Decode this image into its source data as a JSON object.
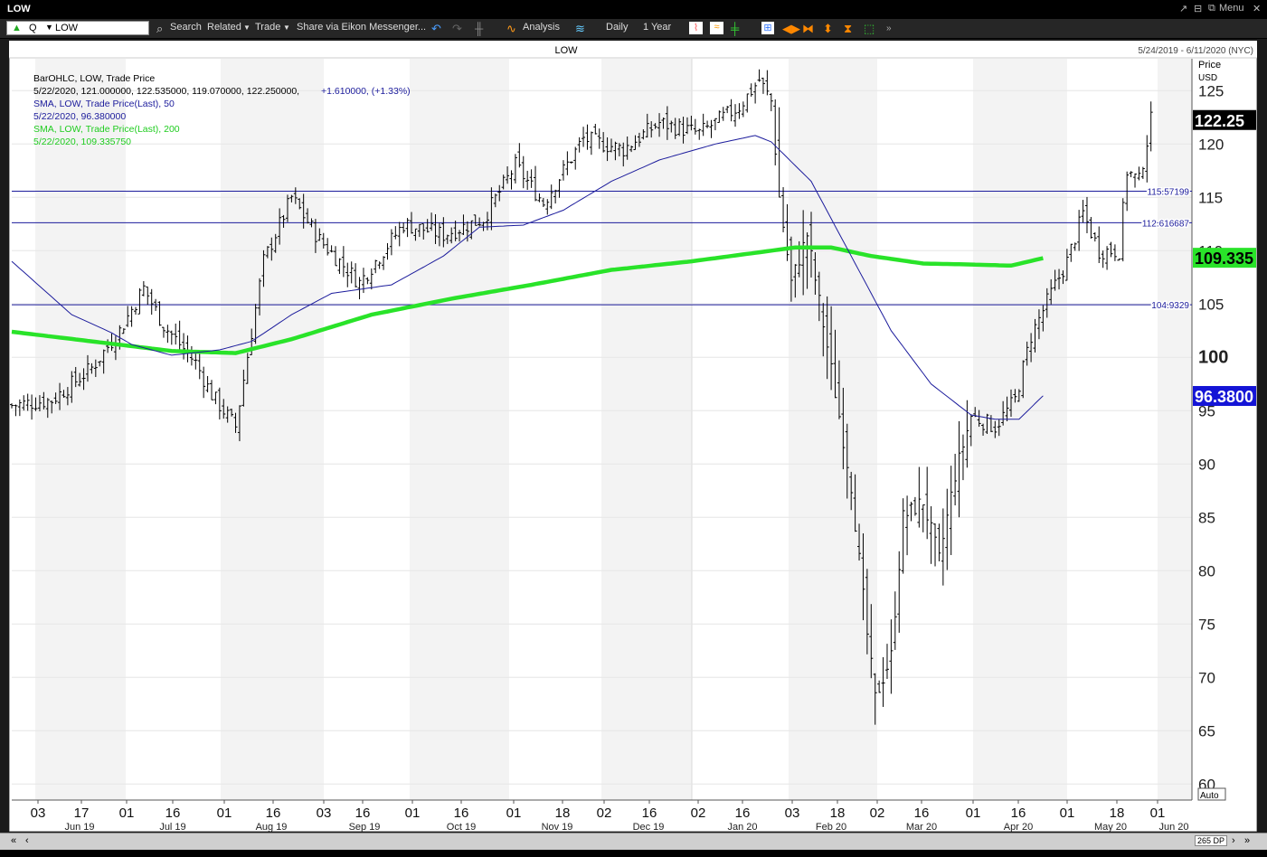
{
  "window": {
    "title": "LOW",
    "menu_label": "Menu",
    "controls": [
      "↗",
      "⊟",
      "⧉",
      "✕"
    ]
  },
  "toolbar": {
    "ric_value": "LOW",
    "ric_prefix": "Q",
    "search": "Search",
    "related": "Related",
    "trade": "Trade",
    "share": "Share via Eikon Messenger...",
    "analysis": "Analysis",
    "interval": "Daily",
    "range": "1 Year"
  },
  "chart_header": {
    "instrument": "LOW",
    "date_range": "5/24/2019 - 6/11/2020 (NYC)",
    "axis_title_1": "Price",
    "axis_title_2": "USD",
    "auto_label": "Auto",
    "dp_label": "265 DP"
  },
  "legend": {
    "line1": "BarOHLC, LOW, Trade Price",
    "line2_values": "5/22/2020, 121.000000, 122.535000, 119.070000, 122.250000,",
    "line2_change": "+1.610000, (+1.33%)",
    "line3": "SMA, LOW, Trade Price(Last),  50",
    "line4": "5/22/2020, 96.380000",
    "line5": "SMA, LOW, Trade Price(Last),  200",
    "line6": "5/22/2020, 109.335750"
  },
  "colors": {
    "sma50": "#1c1c9c",
    "sma200": "#29e329",
    "bars": "#000000",
    "hline": "#1c1c9c",
    "last_box_bg": "#000000",
    "sma200_box": "#29e329",
    "sma50_box": "#1414d6"
  },
  "chart_data": {
    "type": "bar",
    "subtype": "ohlc",
    "title": "LOW",
    "ylabel": "Price USD",
    "ylim": [
      58.5,
      127.5
    ],
    "yticks": [
      60,
      65,
      70,
      75,
      80,
      85,
      90,
      95,
      100,
      105,
      110,
      115,
      120,
      125
    ],
    "ytick_labels": [
      "60",
      "65",
      "70",
      "75",
      "80",
      "85",
      "90",
      "95",
      "100",
      "105",
      "110",
      "115",
      "120",
      "125"
    ],
    "x_day_labels": [
      "03",
      "17",
      "01",
      "16",
      "01",
      "16",
      "03",
      "16",
      "01",
      "16",
      "01",
      "18",
      "02",
      "16",
      "02",
      "16",
      "03",
      "18",
      "02",
      "16",
      "01",
      "16",
      "01",
      "18",
      "01"
    ],
    "x_month_labels": [
      "Jun 19",
      "Jul 19",
      "Aug 19",
      "Sep 19",
      "Oct 19",
      "Nov 19",
      "Dec 19",
      "Jan 20",
      "Feb 20",
      "Mar 20",
      "Apr 20",
      "May 20",
      "Jun 20"
    ],
    "hlines": [
      {
        "value": 115.57199,
        "label": "115.57199"
      },
      {
        "value": 112.616687,
        "label": "112.616687"
      },
      {
        "value": 104.9329,
        "label": "104.9329"
      }
    ],
    "last_values": [
      {
        "name": "Close",
        "value": "122.25"
      },
      {
        "name": "SMA 200",
        "value": "109.335"
      },
      {
        "name": "SMA 50",
        "value": "96.3800"
      }
    ],
    "close_anchors": [
      [
        0,
        95.5
      ],
      [
        10,
        96
      ],
      [
        20,
        99
      ],
      [
        27,
        102.5
      ],
      [
        33,
        106.5
      ],
      [
        38,
        103
      ],
      [
        46,
        99.5
      ],
      [
        50,
        96.5
      ],
      [
        56,
        93.5
      ],
      [
        63,
        109
      ],
      [
        70,
        115
      ],
      [
        77,
        111
      ],
      [
        87,
        107
      ],
      [
        98,
        112.5
      ],
      [
        108,
        111.5
      ],
      [
        118,
        113
      ],
      [
        126,
        118
      ],
      [
        133,
        114.5
      ],
      [
        143,
        120.5
      ],
      [
        153,
        119.5
      ],
      [
        162,
        122
      ],
      [
        172,
        121
      ],
      [
        182,
        123.5
      ],
      [
        187,
        126
      ],
      [
        190,
        124
      ],
      [
        192,
        115
      ],
      [
        195,
        107
      ],
      [
        199,
        111.5
      ],
      [
        204,
        101
      ],
      [
        210,
        88
      ],
      [
        214,
        74
      ],
      [
        216,
        68
      ],
      [
        220,
        72
      ],
      [
        223,
        85
      ],
      [
        228,
        86.5
      ],
      [
        232,
        81
      ],
      [
        236,
        89
      ],
      [
        240,
        94.5
      ],
      [
        246,
        93.5
      ],
      [
        251,
        96
      ],
      [
        255,
        102
      ],
      [
        260,
        106
      ],
      [
        264,
        109
      ],
      [
        268,
        113.5
      ],
      [
        272,
        110
      ],
      [
        277,
        110
      ],
      [
        279,
        117.5
      ],
      [
        282,
        116.5
      ],
      [
        285,
        122.2
      ]
    ],
    "sma50_anchors": [
      [
        0,
        109
      ],
      [
        15,
        104
      ],
      [
        25,
        102.3
      ],
      [
        30,
        101.2
      ],
      [
        40,
        100.2
      ],
      [
        52,
        100.7
      ],
      [
        60,
        101.5
      ],
      [
        70,
        104
      ],
      [
        80,
        106
      ],
      [
        95,
        106.8
      ],
      [
        108,
        109.5
      ],
      [
        117,
        112.2
      ],
      [
        128,
        112.4
      ],
      [
        138,
        113.8
      ],
      [
        150,
        116.5
      ],
      [
        162,
        118.5
      ],
      [
        176,
        120
      ],
      [
        186,
        120.8
      ],
      [
        190,
        120.2
      ],
      [
        200,
        116.5
      ],
      [
        210,
        109.5
      ],
      [
        220,
        102.5
      ],
      [
        230,
        97.5
      ],
      [
        240,
        94.6
      ],
      [
        246,
        94.2
      ],
      [
        252,
        94.2
      ],
      [
        258,
        96.4
      ]
    ],
    "sma200_anchors": [
      [
        0,
        102.4
      ],
      [
        20,
        101.5
      ],
      [
        40,
        100.6
      ],
      [
        56,
        100.4
      ],
      [
        70,
        101.7
      ],
      [
        90,
        104
      ],
      [
        110,
        105.5
      ],
      [
        130,
        106.8
      ],
      [
        150,
        108.2
      ],
      [
        170,
        109
      ],
      [
        186,
        109.8
      ],
      [
        196,
        110.3
      ],
      [
        205,
        110.3
      ],
      [
        215,
        109.5
      ],
      [
        228,
        108.8
      ],
      [
        240,
        108.7
      ],
      [
        250,
        108.6
      ],
      [
        258,
        109.3
      ]
    ]
  }
}
